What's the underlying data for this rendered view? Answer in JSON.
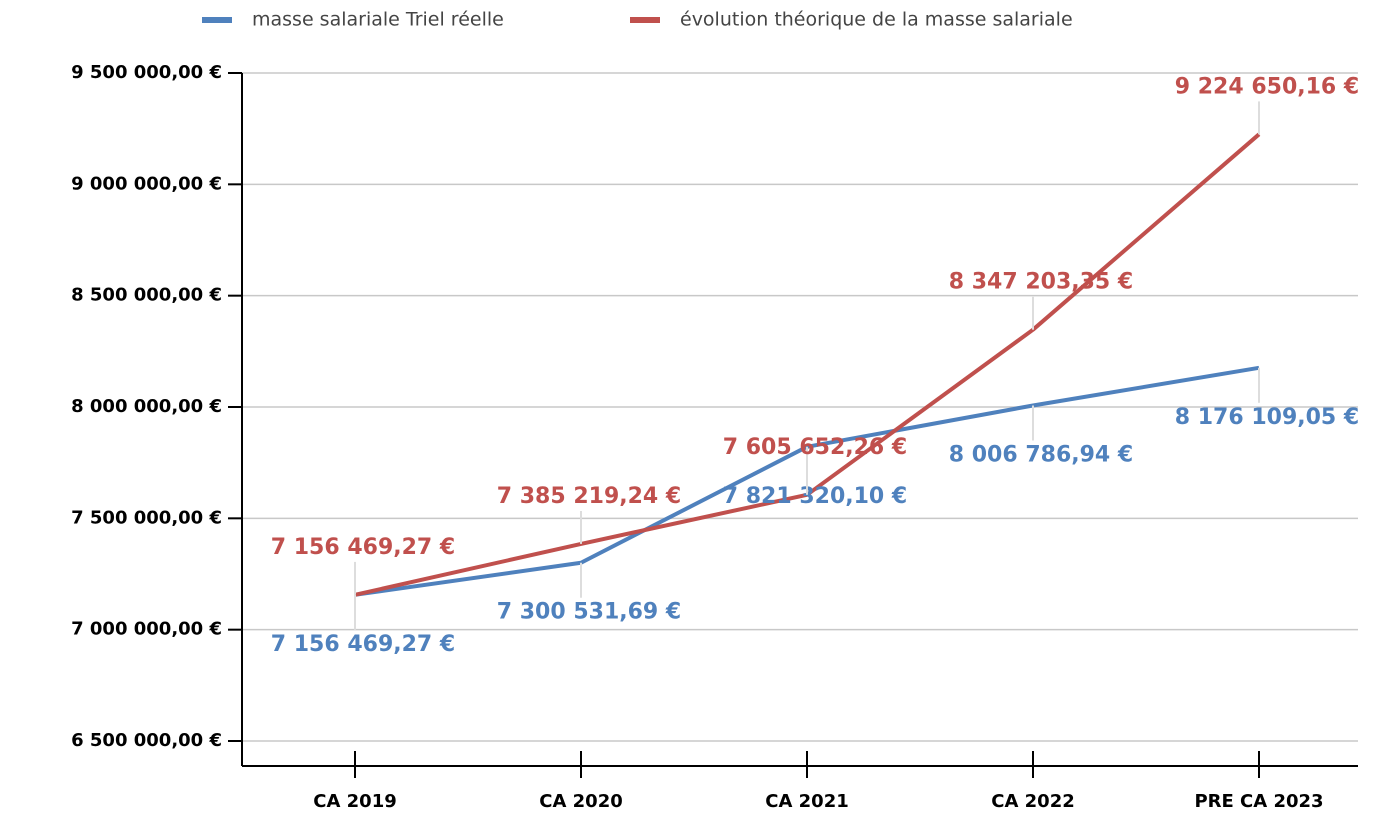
{
  "chart_data": {
    "type": "line",
    "categories": [
      "CA 2019",
      "CA 2020",
      "CA 2021",
      "CA 2022",
      "PRE CA 2023"
    ],
    "series": [
      {
        "name": "masse salariale Triel réelle",
        "color": "#4f81bd",
        "values": [
          7156469.27,
          7300531.69,
          7821320.1,
          8006786.94,
          8176109.05
        ],
        "value_labels": [
          "7 156 469,27  €",
          "7 300 531,69  €",
          "7 821 320,10  €",
          "8 006 786,94  €",
          "8 176 109,05  €"
        ]
      },
      {
        "name": "évolution théorique de la masse salariale",
        "color": "#c0504d",
        "values": [
          7156469.27,
          7385219.24,
          7605652.26,
          8347203.35,
          9224650.16
        ],
        "value_labels": [
          "7 156 469,27  €",
          "7 385 219,24  €",
          "7 605 652,26  €",
          "8 347 203,35  €",
          "9 224 650,16  €"
        ]
      }
    ],
    "ylim": [
      6500000,
      9500000
    ],
    "yticks": [
      {
        "value": 6500000,
        "label": "6 500 000,00 €"
      },
      {
        "value": 7000000,
        "label": "7 000 000,00 €"
      },
      {
        "value": 7500000,
        "label": "7 500 000,00 €"
      },
      {
        "value": 8000000,
        "label": "8 000 000,00 €"
      },
      {
        "value": 8500000,
        "label": "8 500 000,00 €"
      },
      {
        "value": 9000000,
        "label": "9 000 000,00 €"
      },
      {
        "value": 9500000,
        "label": "9 500 000,00 €"
      }
    ],
    "grid": true,
    "legend": "top"
  }
}
